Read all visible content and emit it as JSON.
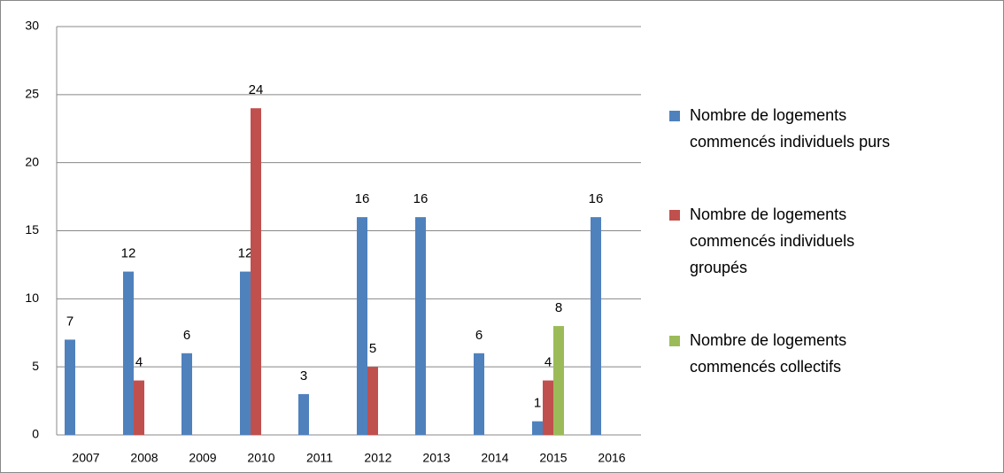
{
  "chart_data": {
    "type": "bar",
    "categories": [
      "2007",
      "2008",
      "2009",
      "2010",
      "2011",
      "2012",
      "2013",
      "2014",
      "2015",
      "2016"
    ],
    "series": [
      {
        "name": "Nombre de logements commencés individuels purs",
        "color": "#4f81bd",
        "values": [
          7,
          12,
          6,
          12,
          3,
          16,
          16,
          6,
          1,
          16
        ]
      },
      {
        "name": "Nombre de logements commencés individuels groupés",
        "color": "#c0504d",
        "values": [
          null,
          4,
          null,
          24,
          null,
          5,
          null,
          null,
          4,
          null
        ]
      },
      {
        "name": "Nombre de logements commencés collectifs",
        "color": "#9bbb59",
        "values": [
          null,
          null,
          null,
          null,
          null,
          null,
          null,
          null,
          8,
          null
        ]
      }
    ],
    "ylim": [
      0,
      30
    ],
    "yticks": [
      0,
      5,
      10,
      15,
      20,
      25,
      30
    ],
    "grid": true,
    "legend": "right"
  }
}
